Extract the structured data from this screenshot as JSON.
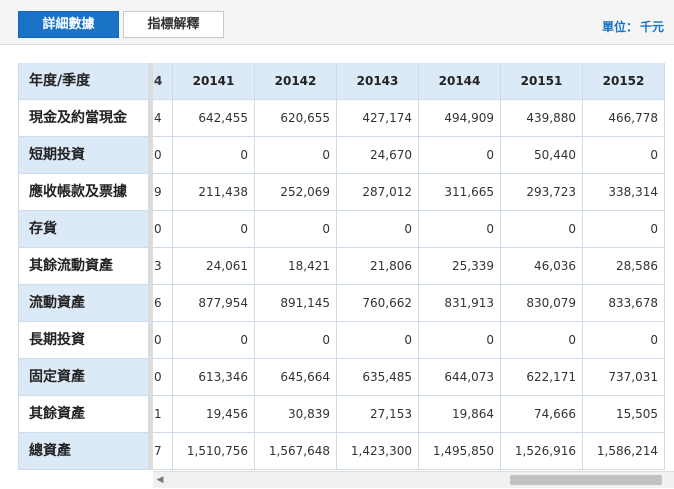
{
  "tabs": {
    "detail": "詳細數據",
    "explain": "指標解釋"
  },
  "unit": {
    "label": "單位：",
    "value": "千元"
  },
  "table": {
    "header_label": "年度/季度",
    "partial_header": "4",
    "columns": [
      "20141",
      "20142",
      "20143",
      "20144",
      "20151",
      "20152"
    ],
    "rows": [
      {
        "label": "現金及約當現金",
        "partial": "4",
        "values": [
          "642,455",
          "620,655",
          "427,174",
          "494,909",
          "439,880",
          "466,778"
        ]
      },
      {
        "label": "短期投資",
        "partial": "0",
        "values": [
          "0",
          "0",
          "24,670",
          "0",
          "50,440",
          "0"
        ]
      },
      {
        "label": "應收帳款及票據",
        "partial": "9",
        "values": [
          "211,438",
          "252,069",
          "287,012",
          "311,665",
          "293,723",
          "338,314"
        ]
      },
      {
        "label": "存貨",
        "partial": "0",
        "values": [
          "0",
          "0",
          "0",
          "0",
          "0",
          "0"
        ]
      },
      {
        "label": "其餘流動資產",
        "partial": "3",
        "values": [
          "24,061",
          "18,421",
          "21,806",
          "25,339",
          "46,036",
          "28,586"
        ]
      },
      {
        "label": "流動資產",
        "partial": "6",
        "values": [
          "877,954",
          "891,145",
          "760,662",
          "831,913",
          "830,079",
          "833,678"
        ]
      },
      {
        "label": "長期投資",
        "partial": "0",
        "values": [
          "0",
          "0",
          "0",
          "0",
          "0",
          "0"
        ]
      },
      {
        "label": "固定資產",
        "partial": "0",
        "values": [
          "613,346",
          "645,664",
          "635,485",
          "644,073",
          "622,171",
          "737,031"
        ]
      },
      {
        "label": "其餘資產",
        "partial": "1",
        "values": [
          "19,456",
          "30,839",
          "27,153",
          "19,864",
          "74,666",
          "15,505"
        ]
      },
      {
        "label": "總資產",
        "partial": "7",
        "values": [
          "1,510,756",
          "1,567,648",
          "1,423,300",
          "1,495,850",
          "1,526,916",
          "1,586,214"
        ]
      }
    ]
  }
}
